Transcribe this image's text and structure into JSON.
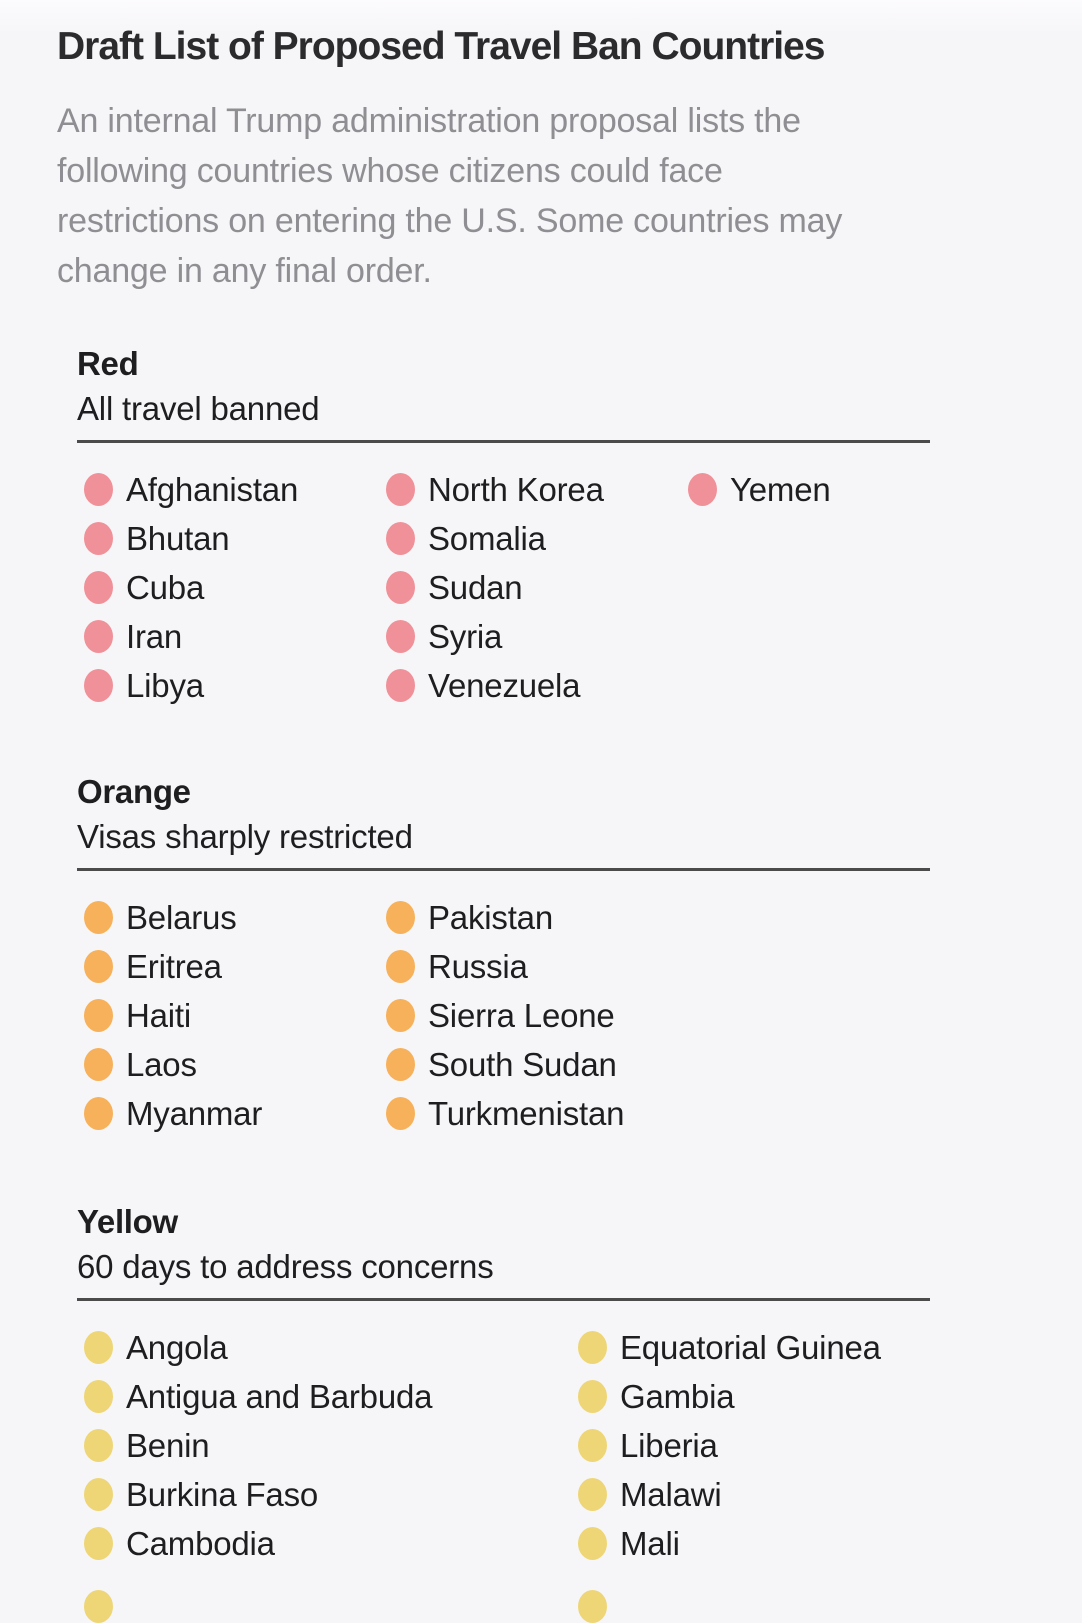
{
  "page": {
    "title": "Draft List of Proposed Travel Ban Countries",
    "subtitle": "An internal Trump administration proposal lists the following countries whose citizens could face restrictions on entering the U.S. Some countries may change in any final order.",
    "subtitle_lines": [
      "An internal Trump administration proposal lists the",
      "following countries whose citizens could face",
      "restrictions on entering the U.S. Some countries may",
      "change in any final order."
    ]
  },
  "colors": {
    "background": "#f6f5f7",
    "title_text": "#2b2b2d",
    "subtitle_text": "#8e8e93",
    "body_text": "#1e1e20",
    "rule": "#4b4b4b",
    "red_dot": "#f09199",
    "orange_dot": "#f6b15a",
    "yellow_dot": "#eed676"
  },
  "sections": [
    {
      "id": "red",
      "label": "Red",
      "description": "All travel banned",
      "dot_color": "#f09199",
      "columns": [
        [
          "Afghanistan",
          "Bhutan",
          "Cuba",
          "Iran",
          "Libya"
        ],
        [
          "North Korea",
          "Somalia",
          "Sudan",
          "Syria",
          "Venezuela"
        ],
        [
          "Yemen"
        ]
      ]
    },
    {
      "id": "orange",
      "label": "Orange",
      "description": "Visas sharply restricted",
      "dot_color": "#f6b15a",
      "columns": [
        [
          "Belarus",
          "Eritrea",
          "Haiti",
          "Laos",
          "Myanmar"
        ],
        [
          "Pakistan",
          "Russia",
          "Sierra Leone",
          "South Sudan",
          "Turkmenistan"
        ]
      ]
    },
    {
      "id": "yellow",
      "label": "Yellow",
      "description": "60 days to address concerns",
      "dot_color": "#eed676",
      "columns": [
        [
          "Angola",
          "Antigua and Barbuda",
          "Benin",
          "Burkina Faso",
          "Cambodia"
        ],
        [
          "Equatorial Guinea",
          "Gambia",
          "Liberia",
          "Malawi",
          "Mali"
        ]
      ],
      "partial_next_row_visible": true
    }
  ]
}
